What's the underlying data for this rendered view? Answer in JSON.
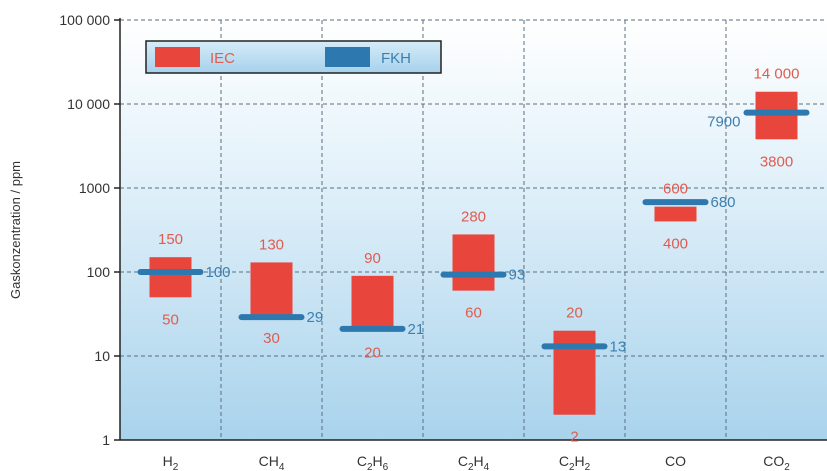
{
  "chart_data": {
    "type": "bar",
    "ylabel": "Gaskonzentration / ppm",
    "yscale": "log",
    "ylim": [
      1,
      100000
    ],
    "yticks": [
      {
        "value": 1,
        "label": "1"
      },
      {
        "value": 10,
        "label": "10"
      },
      {
        "value": 100,
        "label": "100"
      },
      {
        "value": 1000,
        "label": "1000"
      },
      {
        "value": 10000,
        "label": "10 000"
      },
      {
        "value": 100000,
        "label": "100 000"
      }
    ],
    "categories": [
      {
        "base": "H",
        "sub": "2"
      },
      {
        "base": "CH",
        "sub": "4"
      },
      {
        "base": "C",
        "sub": "2",
        "base2": "H",
        "sub2": "6"
      },
      {
        "base": "C",
        "sub": "2",
        "base2": "H",
        "sub2": "4"
      },
      {
        "base": "C",
        "sub": "2",
        "base2": "H",
        "sub2": "2"
      },
      {
        "base": "CO",
        "sub": ""
      },
      {
        "base": "CO",
        "sub": "2"
      }
    ],
    "legend": {
      "placement": "top-left",
      "entries": [
        "IEC",
        "FKH"
      ]
    },
    "series": [
      {
        "name": "IEC",
        "kind": "range",
        "low": [
          50,
          30,
          20,
          60,
          2,
          400,
          3800
        ],
        "high": [
          150,
          130,
          90,
          280,
          20,
          600,
          14000
        ],
        "low_labels": [
          "50",
          "30",
          "20",
          "60",
          "2",
          "400",
          "3800"
        ],
        "high_labels": [
          "150",
          "130",
          "90",
          "280",
          "20",
          "600",
          "14 000"
        ]
      },
      {
        "name": "FKH",
        "kind": "marker",
        "values": [
          100,
          29,
          21,
          93,
          13,
          680,
          7900
        ],
        "labels": [
          "100",
          "29",
          "21",
          "93",
          "13",
          "680",
          "7900"
        ]
      }
    ],
    "grid": true,
    "colors": {
      "iec": "#e8453c",
      "fkh": "#2e78b0",
      "iec_text": "#e05c50",
      "fkh_text": "#3d7fae",
      "grid": "#5a6e80",
      "bg_top": "#ffffff",
      "bg_bottom": "#a9d3ec"
    }
  }
}
